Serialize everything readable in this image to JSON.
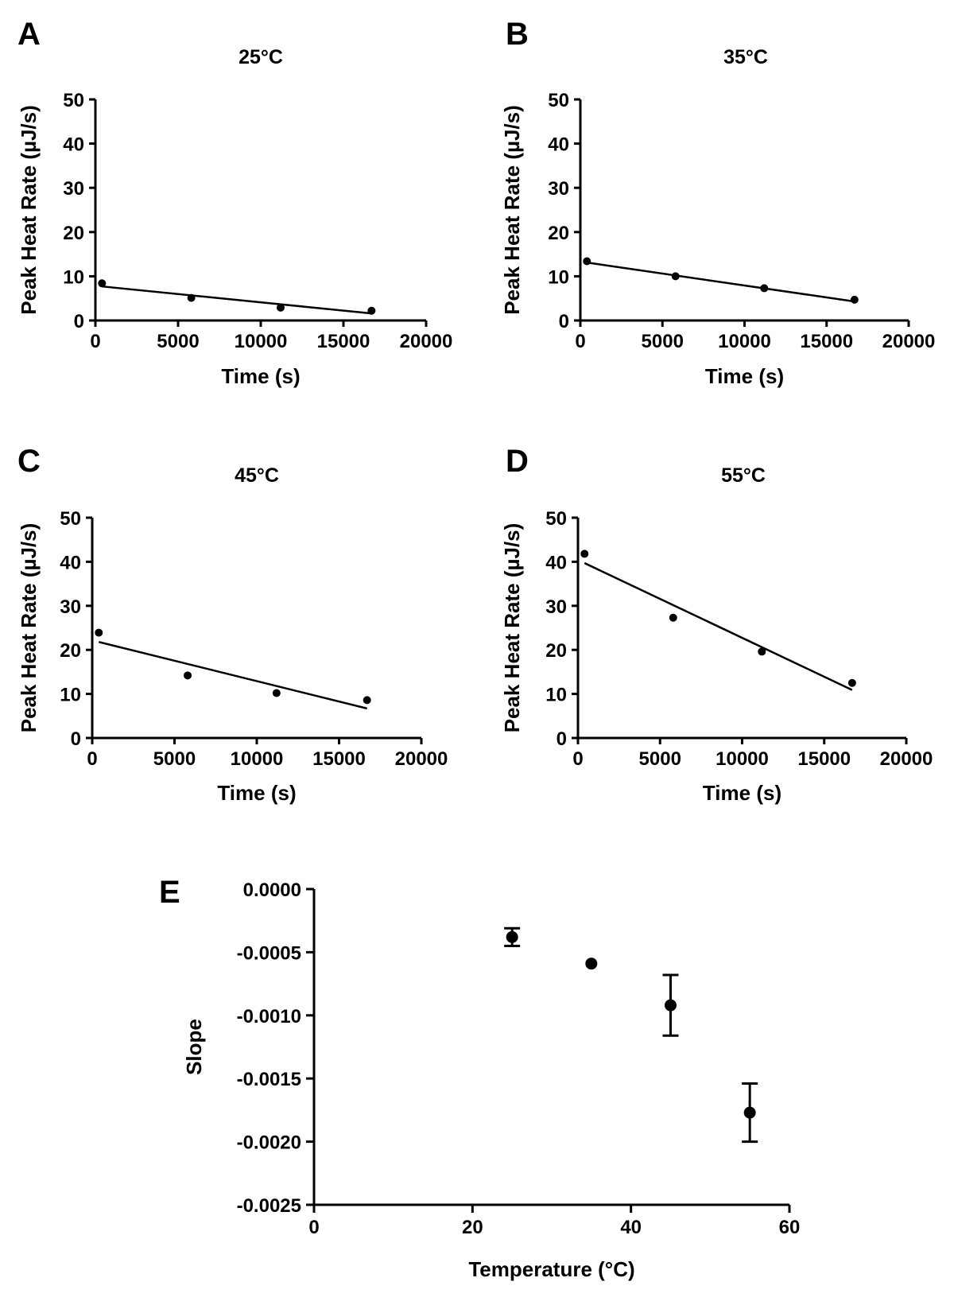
{
  "chart_data": [
    {
      "panel": "A",
      "type": "scatter",
      "title": "25°C",
      "xlabel": "Time (s)",
      "ylabel": "Peak Heat Rate (µJ/s)",
      "xlim": [
        0,
        20000
      ],
      "ylim": [
        0,
        50
      ],
      "xticks": [
        0,
        5000,
        10000,
        15000,
        20000
      ],
      "yticks": [
        0,
        10,
        20,
        30,
        40,
        50
      ],
      "points": [
        {
          "x": 400,
          "y": 8.4
        },
        {
          "x": 5800,
          "y": 5.1
        },
        {
          "x": 11200,
          "y": 2.9
        },
        {
          "x": 16700,
          "y": 2.2
        }
      ],
      "fit": {
        "x": [
          400,
          16700
        ],
        "y": [
          7.7,
          1.6
        ]
      }
    },
    {
      "panel": "B",
      "type": "scatter",
      "title": "35°C",
      "xlabel": "Time (s)",
      "ylabel": "Peak Heat Rate (µJ/s)",
      "xlim": [
        0,
        20000
      ],
      "ylim": [
        0,
        50
      ],
      "xticks": [
        0,
        5000,
        10000,
        15000,
        20000
      ],
      "yticks": [
        0,
        10,
        20,
        30,
        40,
        50
      ],
      "points": [
        {
          "x": 400,
          "y": 13.4
        },
        {
          "x": 5800,
          "y": 10.0
        },
        {
          "x": 11200,
          "y": 7.3
        },
        {
          "x": 16700,
          "y": 4.7
        }
      ],
      "fit": {
        "x": [
          400,
          16700
        ],
        "y": [
          13.1,
          4.3
        ]
      }
    },
    {
      "panel": "C",
      "type": "scatter",
      "title": "45°C",
      "xlabel": "Time (s)",
      "ylabel": "Peak Heat Rate (µJ/s)",
      "xlim": [
        0,
        20000
      ],
      "ylim": [
        0,
        50
      ],
      "xticks": [
        0,
        5000,
        10000,
        15000,
        20000
      ],
      "yticks": [
        0,
        10,
        20,
        30,
        40,
        50
      ],
      "points": [
        {
          "x": 400,
          "y": 23.9
        },
        {
          "x": 5800,
          "y": 14.2
        },
        {
          "x": 11200,
          "y": 10.2
        },
        {
          "x": 16700,
          "y": 8.6
        }
      ],
      "fit": {
        "x": [
          400,
          16700
        ],
        "y": [
          21.8,
          6.7
        ]
      }
    },
    {
      "panel": "D",
      "type": "scatter",
      "title": "55°C",
      "xlabel": "Time (s)",
      "ylabel": "Peak Heat Rate (µJ/s)",
      "xlim": [
        0,
        20000
      ],
      "ylim": [
        0,
        50
      ],
      "xticks": [
        0,
        5000,
        10000,
        15000,
        20000
      ],
      "yticks": [
        0,
        10,
        20,
        30,
        40,
        50
      ],
      "points": [
        {
          "x": 400,
          "y": 41.8
        },
        {
          "x": 5800,
          "y": 27.3
        },
        {
          "x": 11200,
          "y": 19.6
        },
        {
          "x": 16700,
          "y": 12.5
        }
      ],
      "fit": {
        "x": [
          400,
          16700
        ],
        "y": [
          39.7,
          10.9
        ]
      }
    },
    {
      "panel": "E",
      "type": "scatter",
      "title": "",
      "xlabel": "Temperature (°C)",
      "ylabel": "Slope",
      "xlim": [
        0,
        60
      ],
      "ylim": [
        -0.0025,
        0.0
      ],
      "xticks": [
        0,
        20,
        40,
        60
      ],
      "yticks": [
        0.0,
        -0.0005,
        -0.001,
        -0.0015,
        -0.002,
        -0.0025
      ],
      "xtick_labels": [
        "0",
        "20",
        "40",
        "60"
      ],
      "ytick_labels": [
        "0.0000",
        "-0.0005",
        "-0.0010",
        "-0.0015",
        "-0.0020",
        "-0.0025"
      ],
      "points": [
        {
          "x": 25,
          "y": -0.00038,
          "err_low": -0.00045,
          "err_high": -0.00031
        },
        {
          "x": 35,
          "y": -0.00059
        },
        {
          "x": 45,
          "y": -0.00092,
          "err_low": -0.00116,
          "err_high": -0.00068
        },
        {
          "x": 55,
          "y": -0.00177,
          "err_low": -0.002,
          "err_high": -0.00154
        }
      ]
    }
  ]
}
